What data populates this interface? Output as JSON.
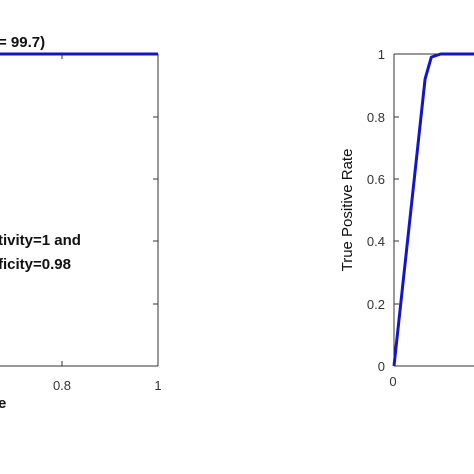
{
  "colors": {
    "curve": "#1414c8",
    "axis": "#333333",
    "text": "#111111"
  },
  "chart_data": [
    {
      "type": "line",
      "title": "= 99.7)",
      "xlabel": "e",
      "ylabel": "",
      "xlim": [
        0,
        1
      ],
      "ylim": [
        0,
        1
      ],
      "x_tick_labels": [
        "0.8",
        "1"
      ],
      "annotation": [
        "tivity=1 and",
        "ficity=0.98"
      ],
      "series": [
        {
          "x": [
            0,
            1
          ],
          "y": [
            1,
            1
          ]
        }
      ]
    },
    {
      "type": "line",
      "title": "",
      "xlabel": "",
      "ylabel": "True Positive Rate",
      "xlim": [
        0,
        1
      ],
      "ylim": [
        0,
        1
      ],
      "x_tick_labels": [
        "0"
      ],
      "y_tick_labels": [
        "0",
        "0.2",
        "0.4",
        "0.6",
        "0.8",
        "1"
      ],
      "series": [
        {
          "x": [
            0,
            0.1,
            0.12,
            0.15,
            1
          ],
          "y": [
            0,
            0.92,
            0.99,
            1,
            1
          ]
        }
      ]
    }
  ]
}
